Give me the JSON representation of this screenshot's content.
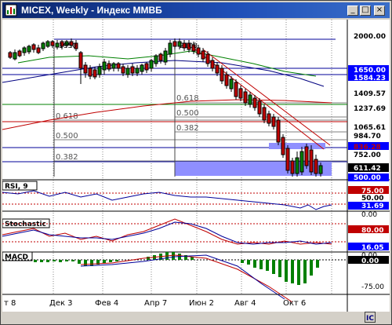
{
  "window": {
    "title": "MICEX, Weekly - Индекс ММВБ"
  },
  "colors": {
    "titlebar": "#0a246a",
    "axis_box": "#0000ff",
    "bg": "#ffffff"
  },
  "main_chart": {
    "top_value": "2000.00",
    "labels": {
      "l1650": "1650.00",
      "l1584": "1584.23",
      "l1409": "1409.57",
      "l1237": "1237.69",
      "l1065": "1065.61",
      "l984": "984.70",
      "l836": "836.28",
      "l752": "752.00",
      "l611": "611.42",
      "l500": "500.00"
    },
    "fib": [
      "0.618",
      "0.500",
      "0.382",
      "0.618",
      "0.500",
      "0.382"
    ]
  },
  "rsi": {
    "title": "RSI, 9",
    "v75": "75.00",
    "v50": "50.00",
    "v31": "31.69",
    "v0": "0.00"
  },
  "stoch": {
    "title": "Stochastic",
    "v80": "80.00",
    "v16": "16.05",
    "v0": "0.00"
  },
  "macd": {
    "title": "MACD",
    "v0": "0.00",
    "vneg": "-75.00"
  },
  "x_axis": [
    "т 8",
    "Дек 3",
    "Фев 4",
    "Апр 7",
    "Июн 2",
    "Авг 4",
    "Окт 6"
  ]
}
